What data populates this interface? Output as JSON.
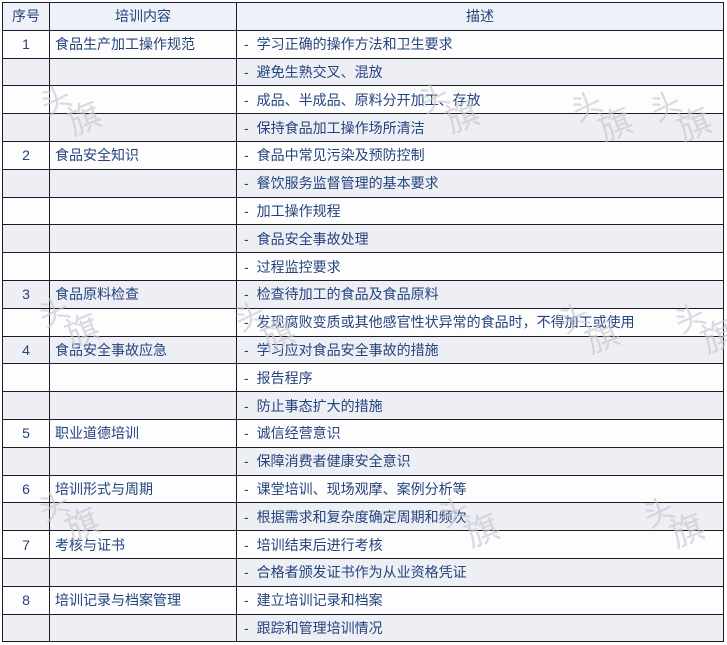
{
  "colors": {
    "text": "#24437d",
    "border": "#1c1c28",
    "header_bg": "#eef1f7",
    "row_bg": "#fdfdfe",
    "row_alt_bg": "#edeff5",
    "watermark": "#c7c8d0",
    "page_bg": "#ffffff"
  },
  "table": {
    "columns": [
      "序号",
      "培训内容",
      "描述"
    ],
    "bullet": "-",
    "rows": [
      {
        "no": "1",
        "content": "食品生产加工操作规范",
        "desc": "学习正确的操作方法和卫生要求"
      },
      {
        "no": "",
        "content": "",
        "desc": "避免生熟交叉、混放"
      },
      {
        "no": "",
        "content": "",
        "desc": "成品、半成品、原料分开加工、存放"
      },
      {
        "no": "",
        "content": "",
        "desc": "保持食品加工操作场所清洁"
      },
      {
        "no": "2",
        "content": "食品安全知识",
        "desc": "食品中常见污染及预防控制"
      },
      {
        "no": "",
        "content": "",
        "desc": "餐饮服务监督管理的基本要求"
      },
      {
        "no": "",
        "content": "",
        "desc": "加工操作规程"
      },
      {
        "no": "",
        "content": "",
        "desc": "食品安全事故处理"
      },
      {
        "no": "",
        "content": "",
        "desc": "过程监控要求"
      },
      {
        "no": "3",
        "content": "食品原料检查",
        "desc": "检查待加工的食品及食品原料"
      },
      {
        "no": "",
        "content": "",
        "desc": "发现腐败变质或其他感官性状异常的食品时，不得加工或使用"
      },
      {
        "no": "4",
        "content": "食品安全事故应急",
        "desc": "学习应对食品安全事故的措施"
      },
      {
        "no": "",
        "content": "",
        "desc": "报告程序"
      },
      {
        "no": "",
        "content": "",
        "desc": "防止事态扩大的措施"
      },
      {
        "no": "5",
        "content": "职业道德培训",
        "desc": "诚信经营意识"
      },
      {
        "no": "",
        "content": "",
        "desc": "保障消费者健康安全意识"
      },
      {
        "no": "6",
        "content": "培训形式与周期",
        "desc": "课堂培训、现场观摩、案例分析等"
      },
      {
        "no": "",
        "content": "",
        "desc": "根据需求和复杂度确定周期和频次"
      },
      {
        "no": "7",
        "content": "考核与证书",
        "desc": "培训结束后进行考核"
      },
      {
        "no": "",
        "content": "",
        "desc": "合格者颁发证书作为从业资格凭证"
      },
      {
        "no": "8",
        "content": "培训记录与档案管理",
        "desc": "建立培训记录和档案"
      },
      {
        "no": "",
        "content": "",
        "desc": "跟踪和管理培训情况"
      }
    ]
  },
  "watermark": {
    "top_char": "头",
    "bottom_char": "旗"
  }
}
